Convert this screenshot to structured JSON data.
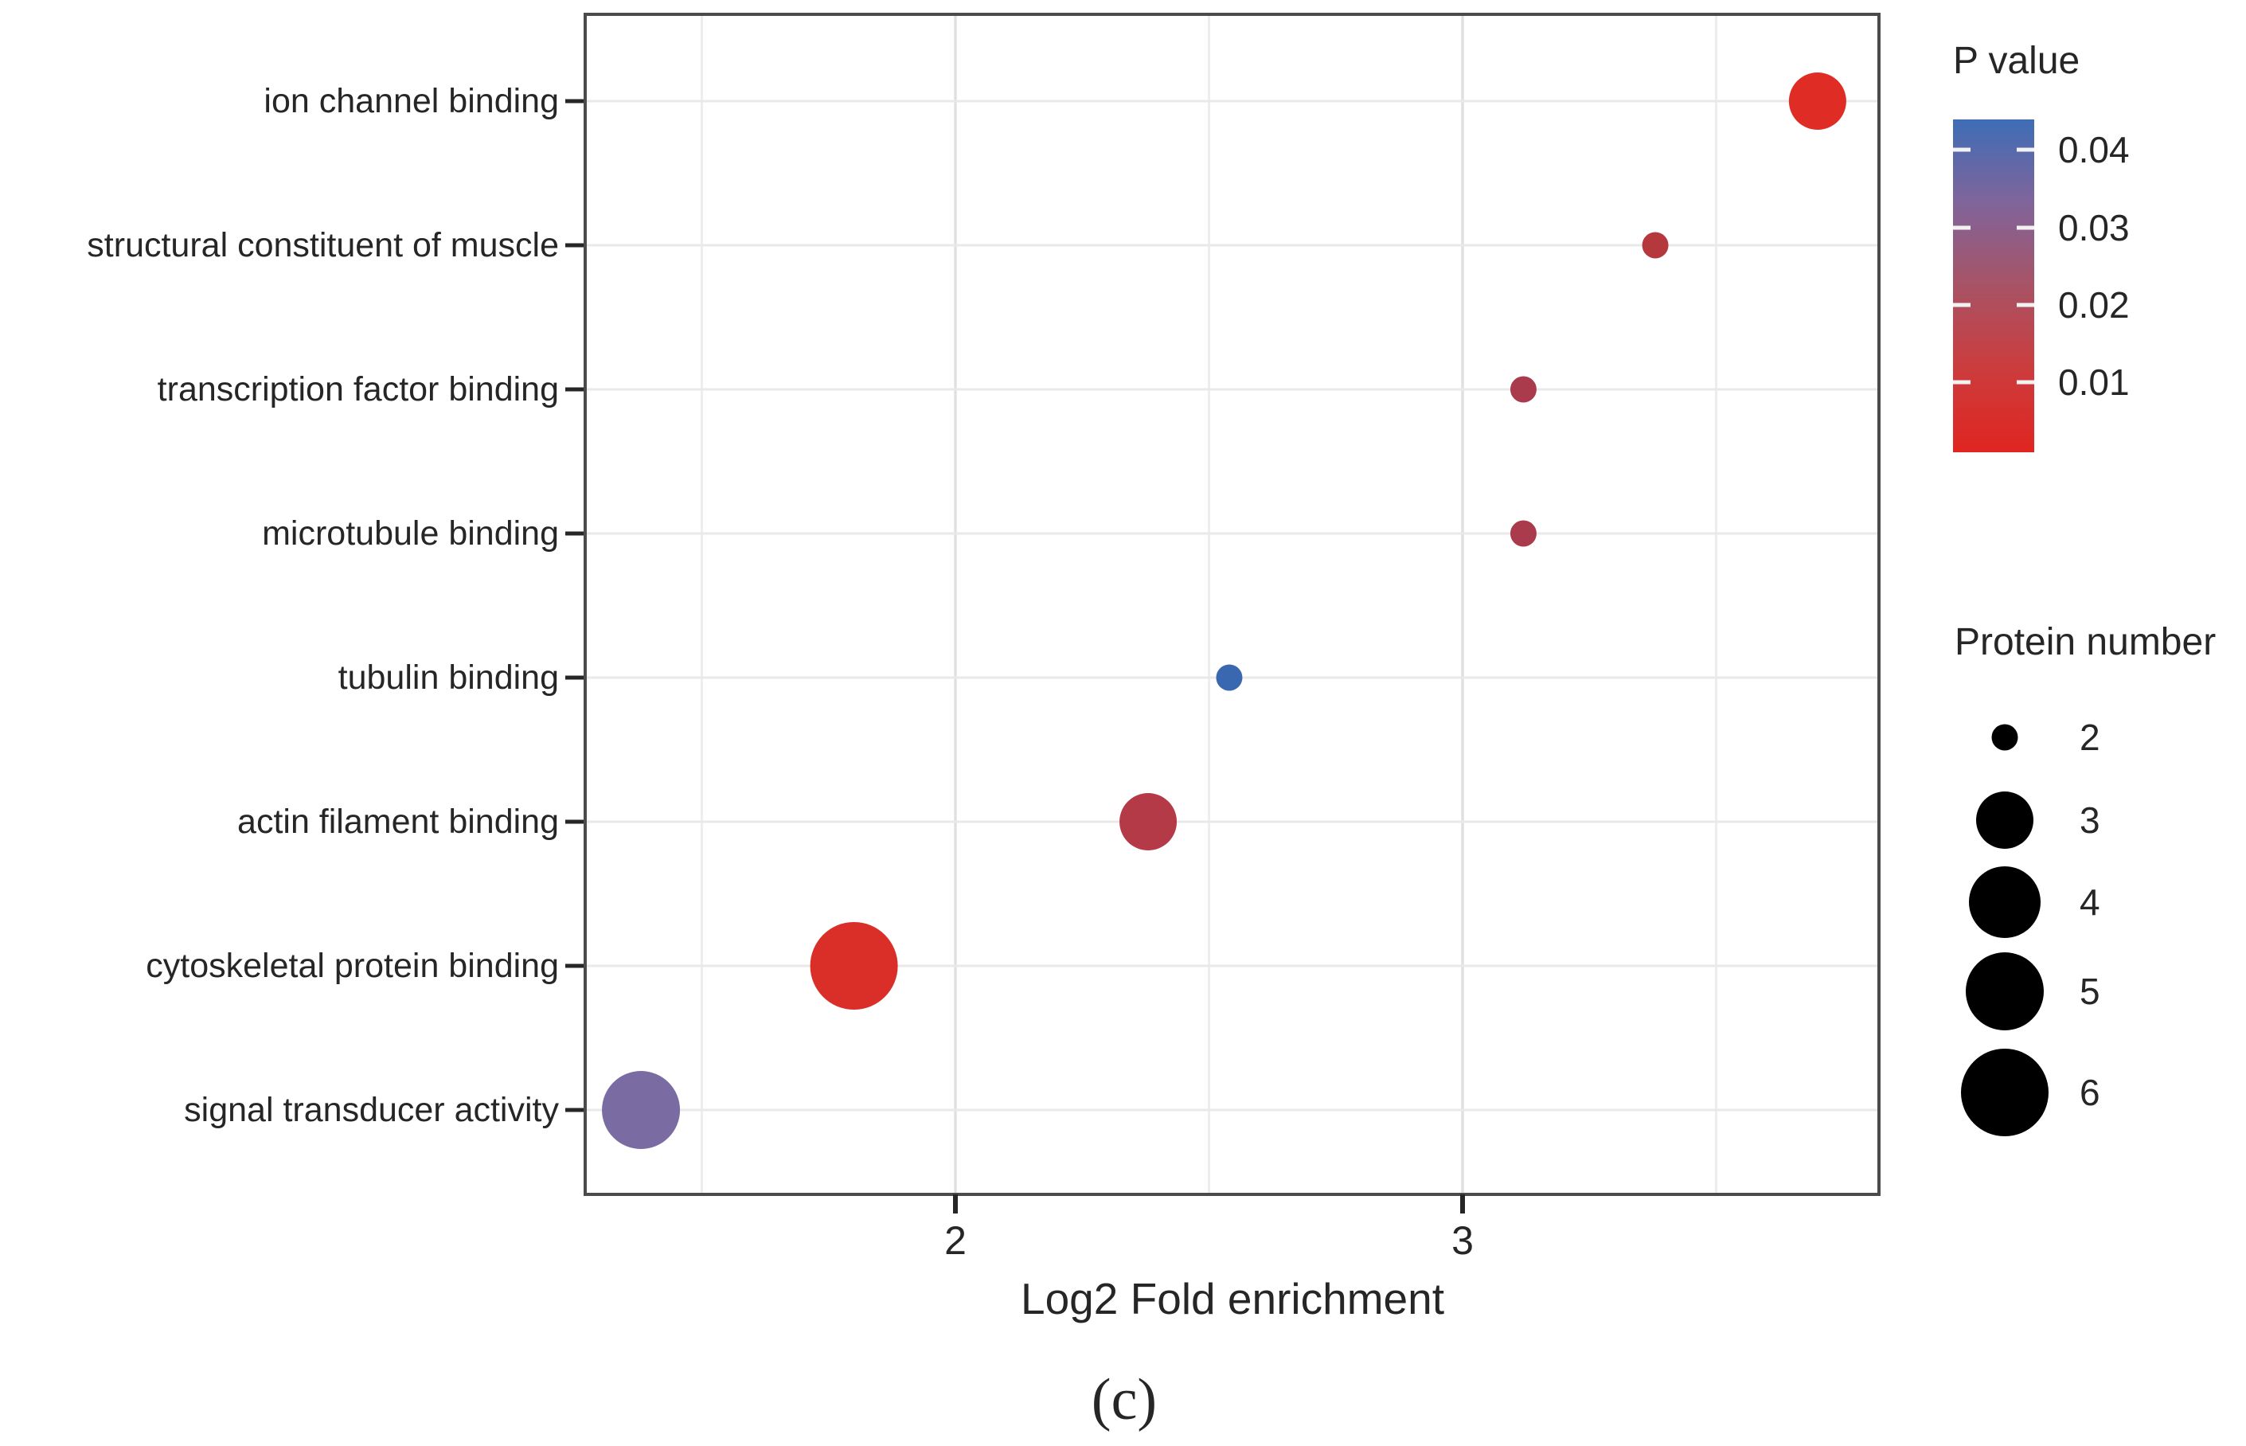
{
  "figure": {
    "caption": "(c)"
  },
  "chart_data": {
    "type": "scatter",
    "title": "",
    "xlabel": "Log2 Fold enrichment",
    "ylabel": "",
    "x_ticks": [
      2,
      3
    ],
    "x_minor_gridlines": [
      1.5,
      2.5,
      3.5
    ],
    "xlim": [
      1.27,
      3.82
    ],
    "grid": true,
    "categories": [
      "ion channel binding",
      "structural constituent of muscle",
      "transcription factor binding",
      "microtubule binding",
      "tubulin binding",
      "actin filament binding",
      "cytoskeletal protein binding",
      "signal transducer activity"
    ],
    "points": [
      {
        "category": "ion channel binding",
        "log2_fold_enrichment": 3.7,
        "protein_number": 3,
        "p_value_est": 0.001,
        "color": "#df2c25"
      },
      {
        "category": "structural constituent of muscle",
        "log2_fold_enrichment": 3.38,
        "protein_number": 2,
        "p_value_est": 0.012,
        "color": "#b5383d"
      },
      {
        "category": "transcription factor binding",
        "log2_fold_enrichment": 3.12,
        "protein_number": 2,
        "p_value_est": 0.016,
        "color": "#a93b4c"
      },
      {
        "category": "microtubule binding",
        "log2_fold_enrichment": 3.12,
        "protein_number": 2,
        "p_value_est": 0.016,
        "color": "#a93b4c"
      },
      {
        "category": "tubulin binding",
        "log2_fold_enrichment": 2.54,
        "protein_number": 2,
        "p_value_est": 0.043,
        "color": "#3a68b0"
      },
      {
        "category": "actin filament binding",
        "log2_fold_enrichment": 2.38,
        "protein_number": 3,
        "p_value_est": 0.013,
        "color": "#b43a47"
      },
      {
        "category": "cytoskeletal protein binding",
        "log2_fold_enrichment": 1.8,
        "protein_number": 6,
        "p_value_est": 0.003,
        "color": "#da2f28"
      },
      {
        "category": "signal transducer activity",
        "log2_fold_enrichment": 1.38,
        "protein_number": 5,
        "p_value_est": 0.028,
        "color": "#7a6ba3"
      }
    ],
    "legend": {
      "p_value": {
        "title": "P value",
        "tick_labels": [
          "0.04",
          "0.03",
          "0.02",
          "0.01"
        ],
        "range_est": [
          0.044,
          0.001
        ],
        "gradient_stops": [
          {
            "offset": "0%",
            "color": "#3e6db6"
          },
          {
            "offset": "25%",
            "color": "#80649a"
          },
          {
            "offset": "50%",
            "color": "#a85365"
          },
          {
            "offset": "75%",
            "color": "#cc3c3d"
          },
          {
            "offset": "100%",
            "color": "#e02520"
          }
        ]
      },
      "protein_number": {
        "title": "Protein number",
        "entries": [
          2,
          3,
          4,
          5,
          6
        ],
        "dot_color": "#000000"
      }
    }
  }
}
